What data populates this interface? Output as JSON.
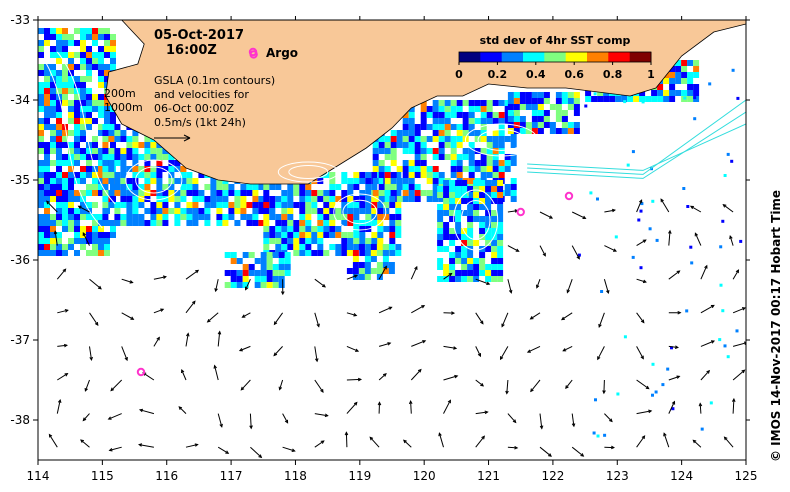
{
  "map": {
    "date": "05-Oct-2017",
    "time": "16:00Z",
    "argo_label": "Argo",
    "depth_labels": [
      "200m",
      "1000m"
    ],
    "gsla_lines": [
      "GSLA (0.1m contours)",
      "and velocities for",
      "06-Oct 00:00Z",
      "0.5m/s (1kt 24h)"
    ],
    "colorbar": {
      "title": "std dev of 4hr SST comp",
      "ticks": [
        "0",
        "0.2",
        "0.4",
        "0.6",
        "0.8",
        "1"
      ],
      "colors": [
        "#00007f",
        "#0000ff",
        "#0080ff",
        "#00ffff",
        "#80ff80",
        "#ffff00",
        "#ff8000",
        "#ff0000",
        "#7f0000"
      ]
    },
    "credit": "© IMOS 14-Nov-2017 00:17 Hobart Time",
    "colors": {
      "land": "#f8c898",
      "argo": "#ff33cc",
      "contour": "#ffffff",
      "track": "#33dddd"
    }
  },
  "chart_data": {
    "type": "map",
    "xlim": [
      114,
      125
    ],
    "ylim": [
      -38.5,
      -33
    ],
    "x_ticks": [
      114,
      115,
      116,
      117,
      118,
      119,
      120,
      121,
      122,
      123,
      124,
      125
    ],
    "y_ticks": [
      -33,
      -34,
      -35,
      -36,
      -37,
      -38
    ],
    "argo_floats": [
      {
        "lon": 117.35,
        "lat": -33.43
      },
      {
        "lon": 115.6,
        "lat": -37.4
      },
      {
        "lon": 121.5,
        "lat": -35.4
      },
      {
        "lon": 122.25,
        "lat": -35.2
      }
    ],
    "coastline": [
      [
        114.0,
        -33.0
      ],
      [
        125.0,
        -33.0
      ],
      [
        125.0,
        -33.05
      ],
      [
        124.5,
        -33.15
      ],
      [
        124.0,
        -33.45
      ],
      [
        123.6,
        -33.85
      ],
      [
        123.2,
        -33.95
      ],
      [
        122.7,
        -33.9
      ],
      [
        122.2,
        -33.85
      ],
      [
        121.6,
        -33.85
      ],
      [
        121.0,
        -33.8
      ],
      [
        120.6,
        -33.95
      ],
      [
        120.2,
        -33.95
      ],
      [
        119.8,
        -34.1
      ],
      [
        119.5,
        -34.35
      ],
      [
        119.1,
        -34.6
      ],
      [
        118.6,
        -34.85
      ],
      [
        118.2,
        -35.05
      ],
      [
        117.8,
        -35.05
      ],
      [
        117.3,
        -35.05
      ],
      [
        116.8,
        -35.0
      ],
      [
        116.3,
        -34.85
      ],
      [
        115.8,
        -34.5
      ],
      [
        115.3,
        -34.3
      ],
      [
        115.05,
        -33.95
      ],
      [
        115.1,
        -33.65
      ],
      [
        115.55,
        -33.55
      ],
      [
        115.65,
        -33.3
      ],
      [
        115.3,
        -33.0
      ]
    ]
  }
}
